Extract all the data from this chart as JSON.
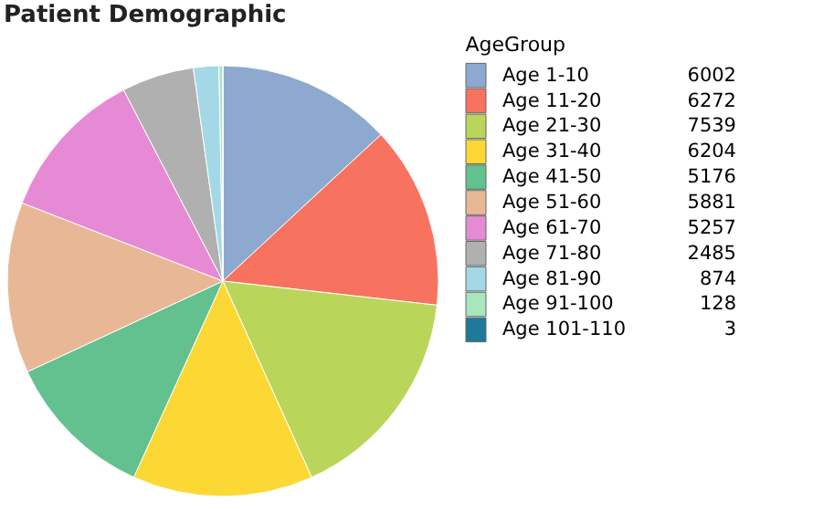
{
  "chart_data": {
    "type": "pie",
    "title": "Patient Demographic",
    "legend_title": "AgeGroup",
    "legend": "right",
    "data_labels": true,
    "categories": [
      "Age 1-10",
      "Age 11-20",
      "Age 21-30",
      "Age 31-40",
      "Age 41-50",
      "Age 51-60",
      "Age 61-70",
      "Age 71-80",
      "Age 81-90",
      "Age 91-100",
      "Age 101-110"
    ],
    "values": [
      6002,
      6272,
      7539,
      6204,
      5176,
      5881,
      5257,
      2485,
      874,
      128,
      3
    ],
    "colors": [
      "#8ea9cf",
      "#f7735f",
      "#b9d65a",
      "#fcd835",
      "#63c08f",
      "#e8b896",
      "#e68ad6",
      "#b0b0b0",
      "#a4d8e6",
      "#a8e6bd",
      "#1f7a99"
    ]
  }
}
